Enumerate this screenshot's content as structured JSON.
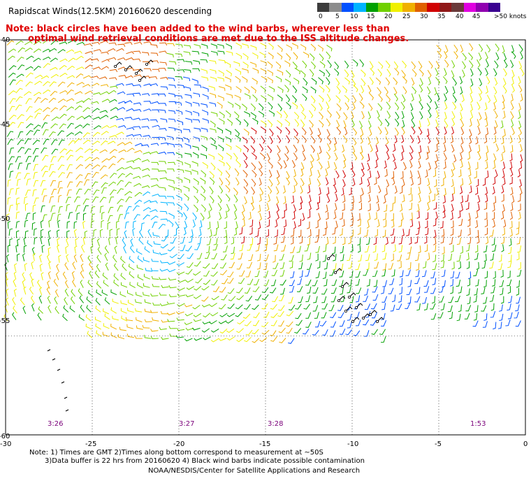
{
  "header": {
    "title": "Rapidscat Winds(12.5KM) 20160620 descending",
    "note_line1": "Note: black circles have been added to the wind barbs, wherever less than",
    "note_line2": "optimal wind retrieval conditions are met due to the ISS altitude changes."
  },
  "legend": {
    "colors": [
      "#3c3c3c",
      "#8c8c8c",
      "#0050ff",
      "#00b4ff",
      "#00a000",
      "#70d000",
      "#f0f000",
      "#f0b000",
      "#e06000",
      "#d00000",
      "#901818",
      "#6a3a3a",
      "#e000e0",
      "#9000b0",
      "#3a0090"
    ],
    "labels": [
      "0",
      "5",
      "10",
      "15",
      "20",
      "25",
      "30",
      "35",
      "40",
      "45",
      ">50 knots"
    ]
  },
  "map": {
    "lon_labels": [
      "-30",
      "-25",
      "-20",
      "-15",
      "-10",
      "-5",
      "0"
    ],
    "lat_labels": [
      "-40",
      "-45",
      "-50",
      "-55",
      "-60"
    ],
    "time_labels": [
      "3:26",
      "3:27",
      "3:28",
      "1:53"
    ]
  },
  "footer": {
    "line1": "Note: 1) Times are GMT 2)Times along bottom correspond to measurement at ~50S",
    "line2": "3)Data buffer is 22 hrs from 20160620 4) Black wind barbs indicate possible contamination",
    "line3": "NOAA/NESDIS/Center for Satellite Applications and Research"
  }
}
